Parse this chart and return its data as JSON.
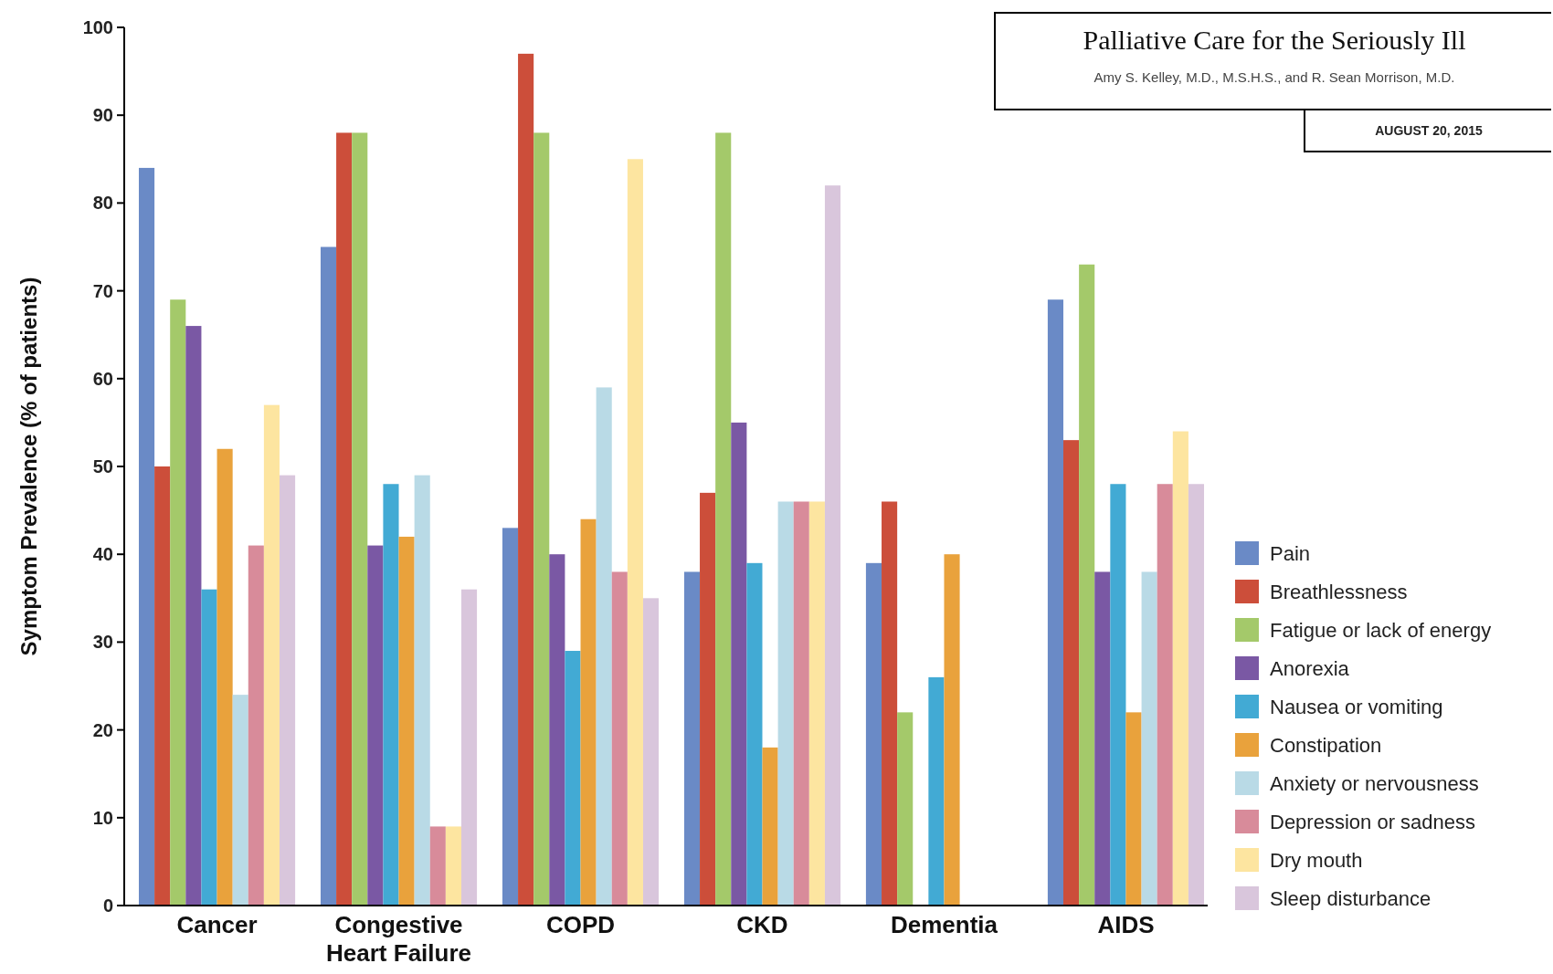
{
  "chart_data": {
    "type": "bar",
    "title": "Palliative Care for the Seriously Ill",
    "subtitle": "Amy S. Kelley, M.D., M.S.H.S., and R. Sean Morrison, M.D.",
    "annotations": [
      "AUGUST 20, 2015"
    ],
    "ylabel": "Symptom Prevalence (% of patients)",
    "categories": [
      "Cancer",
      "Congestive Heart Failure",
      "COPD",
      "CKD",
      "Dementia",
      "AIDS"
    ],
    "ylim": [
      0,
      100
    ],
    "yticks": [
      0,
      10,
      20,
      30,
      40,
      50,
      60,
      70,
      80,
      90,
      100
    ],
    "grid": false,
    "legend": "right",
    "series": [
      {
        "name": "Pain",
        "color": "#6a8ac6",
        "values": [
          84,
          75,
          43,
          38,
          39,
          69
        ]
      },
      {
        "name": "Breathlessness",
        "color": "#cc4e3a",
        "values": [
          50,
          88,
          97,
          47,
          46,
          53
        ]
      },
      {
        "name": "Fatigue or lack of energy",
        "color": "#a4c96a",
        "values": [
          69,
          88,
          88,
          88,
          22,
          73
        ]
      },
      {
        "name": "Anorexia",
        "color": "#7a58a4",
        "values": [
          66,
          41,
          40,
          55,
          null,
          38
        ]
      },
      {
        "name": "Nausea or vomiting",
        "color": "#42aad4",
        "values": [
          36,
          48,
          29,
          39,
          26,
          48
        ]
      },
      {
        "name": "Constipation",
        "color": "#e9a23c",
        "values": [
          52,
          42,
          44,
          18,
          40,
          22
        ]
      },
      {
        "name": "Anxiety or nervousness",
        "color": "#b9dae6",
        "values": [
          24,
          49,
          59,
          46,
          null,
          38
        ]
      },
      {
        "name": "Depression or sadness",
        "color": "#d88b9a",
        "values": [
          41,
          9,
          38,
          46,
          null,
          48
        ]
      },
      {
        "name": "Dry mouth",
        "color": "#fde5a0",
        "values": [
          57,
          9,
          85,
          46,
          null,
          54
        ]
      },
      {
        "name": "Sleep disturbance",
        "color": "#d9c6dc",
        "values": [
          49,
          36,
          35,
          82,
          null,
          48
        ]
      }
    ]
  }
}
